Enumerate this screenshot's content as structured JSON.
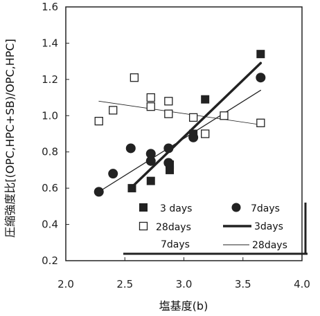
{
  "chart_data": {
    "type": "scatter",
    "xlabel": "塩基度(b)",
    "ylabel": "圧縮強度比[(OPC,HPC+SB)/OPC,HPC]",
    "xlim": [
      2.0,
      4.0
    ],
    "ylim": [
      0.2,
      1.6
    ],
    "x_ticks": [
      "2.0",
      "2.5",
      "3.0",
      "3.5",
      "4.0"
    ],
    "y_ticks": [
      "0.2",
      "0.4",
      "0.6",
      "0.8",
      "1.0",
      "1.2",
      "1.4",
      "1.6"
    ],
    "grid": false,
    "legend_position": "bottom-right",
    "series": [
      {
        "name": "3 days",
        "kind": "points",
        "marker": "filled-square",
        "points": [
          [
            2.56,
            0.6
          ],
          [
            2.72,
            0.64
          ],
          [
            2.88,
            0.7
          ],
          [
            2.88,
            0.73
          ],
          [
            3.08,
            0.9
          ],
          [
            3.18,
            1.09
          ],
          [
            3.65,
            1.34
          ]
        ]
      },
      {
        "name": "7days",
        "kind": "points",
        "marker": "filled-circle",
        "points": [
          [
            2.28,
            0.58
          ],
          [
            2.4,
            0.68
          ],
          [
            2.55,
            0.82
          ],
          [
            2.72,
            0.79
          ],
          [
            2.72,
            0.75
          ],
          [
            2.87,
            0.74
          ],
          [
            2.87,
            0.82
          ],
          [
            3.08,
            0.88
          ],
          [
            3.65,
            1.21
          ]
        ]
      },
      {
        "name": "28days",
        "kind": "points",
        "marker": "open-square",
        "points": [
          [
            2.28,
            0.97
          ],
          [
            2.4,
            1.03
          ],
          [
            2.58,
            1.21
          ],
          [
            2.72,
            1.1
          ],
          [
            2.72,
            1.05
          ],
          [
            2.87,
            1.08
          ],
          [
            2.87,
            1.01
          ],
          [
            3.08,
            0.99
          ],
          [
            3.18,
            0.9
          ],
          [
            3.34,
            1.0
          ],
          [
            3.65,
            0.96
          ]
        ]
      },
      {
        "name": "3days",
        "kind": "line",
        "style": "thick",
        "points": [
          [
            2.55,
            0.6
          ],
          [
            3.65,
            1.29
          ]
        ]
      },
      {
        "name": "7days",
        "kind": "line",
        "style": "medium",
        "points": [
          [
            2.28,
            0.58
          ],
          [
            3.65,
            1.14
          ]
        ]
      },
      {
        "name": "28days",
        "kind": "line",
        "style": "thin",
        "points": [
          [
            2.28,
            1.08
          ],
          [
            3.65,
            0.95
          ]
        ]
      }
    ]
  },
  "colors": {
    "ink": "#222222",
    "background": "#ffffff"
  }
}
